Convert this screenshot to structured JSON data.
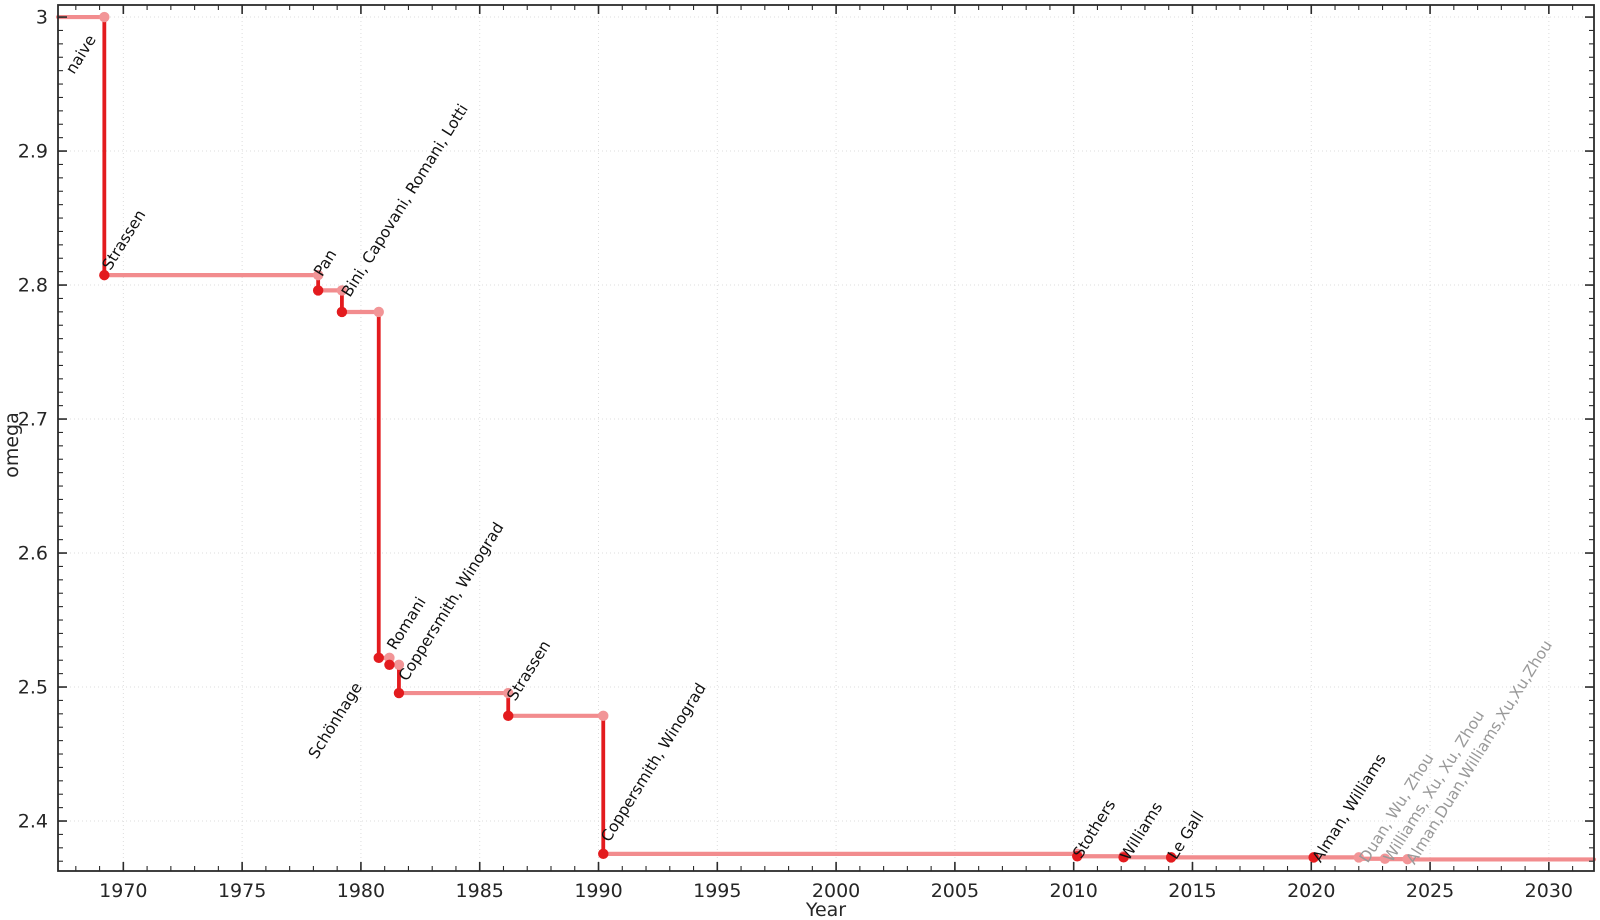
{
  "chart_data": {
    "type": "line",
    "subtype": "step-post",
    "title": "",
    "xlabel": "Year",
    "ylabel": "omega",
    "x_axis": {
      "range": [
        1967.25,
        2031.9
      ],
      "major_ticks": [
        1970,
        1975,
        1980,
        1985,
        1990,
        1995,
        2000,
        2005,
        2010,
        2015,
        2020,
        2025,
        2030
      ],
      "major_tick_labels": [
        "1970",
        "1975",
        "1980",
        "1985",
        "1990",
        "1995",
        "2000",
        "2005",
        "2010",
        "2015",
        "2020",
        "2025",
        "2030"
      ],
      "minor_step": 1
    },
    "y_axis": {
      "range": [
        2.3627,
        3.009
      ],
      "major_ticks": [
        2.4,
        2.5,
        2.6,
        2.7,
        2.8,
        2.9,
        3
      ],
      "major_tick_labels": [
        "2.4",
        "2.5",
        "2.6",
        "2.7",
        "2.8",
        "2.9",
        "3"
      ],
      "minor_step": 0.01
    },
    "grid": {
      "major": true,
      "style": "dotted"
    },
    "legend": "none",
    "colors": {
      "step_vertical": "#e31b1e",
      "step_horizontal": "#f28c8e",
      "marker_dark": "#e31b1e",
      "marker_light": "#f29597",
      "label_black": "#111111",
      "label_gray": "#999999",
      "axis": "#2b2b2b",
      "grid": "#dcdcdc"
    },
    "start": {
      "x": 1967.25,
      "omega": 3.0,
      "label": "naive",
      "label_color": "black",
      "label_offset": [
        16,
        58
      ]
    },
    "points": [
      {
        "x": 1969.2,
        "omega": 2.8074,
        "label": "Strassen",
        "marker": "dark",
        "label_color": "black",
        "label_offset": [
          6,
          -4
        ]
      },
      {
        "x": 1978.2,
        "omega": 2.796,
        "label": "Pan",
        "marker": "dark",
        "label_color": "black",
        "label_offset": [
          4,
          -13
        ]
      },
      {
        "x": 1979.2,
        "omega": 2.7799,
        "label": "Bini, Capovani, Romani, Lotti",
        "marker": "dark",
        "label_color": "black",
        "label_offset": [
          8,
          -14
        ]
      },
      {
        "x": 1980.75,
        "omega": 2.5218,
        "label": "Schönhage",
        "marker": "dark",
        "label_color": "black",
        "label_offset": [
          -62,
          102
        ]
      },
      {
        "x": 1981.2,
        "omega": 2.5166,
        "label": "Romani",
        "marker": "dark",
        "label_color": "black",
        "label_offset": [
          6,
          -14
        ]
      },
      {
        "x": 1981.6,
        "omega": 2.4955,
        "label": "Coppersmith, Winograd",
        "marker": "dark",
        "label_color": "black",
        "label_offset": [
          8,
          -11
        ]
      },
      {
        "x": 1986.2,
        "omega": 2.4785,
        "label": "Strassen",
        "marker": "dark",
        "label_color": "black",
        "label_offset": [
          7,
          -14
        ]
      },
      {
        "x": 1990.2,
        "omega": 2.3755,
        "label": "Coppersmith, Winograd",
        "marker": "dark",
        "label_color": "black",
        "label_offset": [
          6,
          -11
        ]
      },
      {
        "x": 2010.15,
        "omega": 2.3737,
        "label": "Stothers",
        "marker": "dark",
        "label_color": "black",
        "label_offset": [
          4,
          3
        ]
      },
      {
        "x": 2012.1,
        "omega": 2.3729,
        "label": "Williams",
        "marker": "dark",
        "label_color": "black",
        "label_offset": [
          5,
          4
        ]
      },
      {
        "x": 2014.1,
        "omega": 2.37286,
        "label": "Le Gall",
        "marker": "dark",
        "label_color": "black",
        "label_offset": [
          5,
          3
        ]
      },
      {
        "x": 2020.1,
        "omega": 2.37286,
        "label": "Alman, Williams",
        "marker": "dark",
        "label_color": "black",
        "label_offset": [
          7,
          6
        ]
      },
      {
        "x": 2022.0,
        "omega": 2.37187,
        "label": "Duan, Wu, Zhou",
        "marker": "light",
        "label_color": "gray",
        "label_offset": [
          9,
          5
        ]
      },
      {
        "x": 2023.1,
        "omega": 2.37155,
        "label": "Williams, Xu, Xu, Zhou",
        "marker": "light",
        "label_color": "gray",
        "label_offset": [
          7,
          4
        ]
      },
      {
        "x": 2024.05,
        "omega": 2.37134,
        "label": "Alman,Duan,Williams,Xu,Xu,Zhou",
        "marker": "light",
        "label_color": "gray",
        "label_offset": [
          7,
          6
        ]
      }
    ]
  }
}
